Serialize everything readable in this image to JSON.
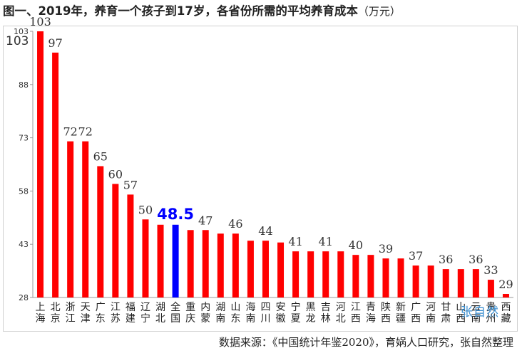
{
  "title": {
    "main": "图一、2019年，养育一个孩子到17岁，各省份所需的平均养育成本",
    "unit": "（万元）"
  },
  "source": "数据来源：《中国统计年鉴2020》，育娲人口研究，张自然整理",
  "watermark": "张自然",
  "colors": {
    "bar": "#ff0000",
    "highlight": "#0000ff",
    "highlight_label": "#0000ff"
  },
  "chart_data": {
    "type": "bar",
    "title": "图一、2019年，养育一个孩子到17岁，各省份所需的平均养育成本（万元）",
    "xlabel": "",
    "ylabel": "",
    "ylim": [
      28,
      103
    ],
    "yticks": [
      "103",
      "88",
      "73",
      "58",
      "43",
      "28"
    ],
    "ytick_values": [
      103,
      88,
      73,
      58,
      43,
      28
    ],
    "grid": false,
    "legend": "none",
    "highlight_category": "全国",
    "categories": [
      "上海",
      "北京",
      "浙江",
      "天津",
      "广东",
      "江苏",
      "福建",
      "辽宁",
      "湖北",
      "全国",
      "重庆",
      "内蒙",
      "湖南",
      "山东",
      "海南",
      "四川",
      "安徽",
      "宁夏",
      "黑龙",
      "吉林",
      "河北",
      "江西",
      "青海",
      "陕西",
      "新疆",
      "广西",
      "河南",
      "甘肃",
      "山西",
      "云南",
      "贵州",
      "西藏"
    ],
    "values": [
      103,
      97,
      72,
      72,
      65,
      60,
      57,
      50,
      48.5,
      48.5,
      47,
      47,
      46,
      46,
      44,
      44,
      43.5,
      41,
      41,
      41,
      41,
      40,
      40,
      39,
      39,
      37,
      37,
      36,
      36,
      36,
      33,
      29
    ],
    "data_labels": [
      "103",
      "97",
      "72",
      "72",
      "65",
      "60",
      "57",
      "50",
      "",
      "48.5",
      "",
      "47",
      "",
      "46",
      "",
      "44",
      "",
      "41",
      "",
      "41",
      "",
      "40",
      "",
      "39",
      "",
      "37",
      "",
      "36",
      "",
      "36",
      "33",
      "29"
    ]
  }
}
